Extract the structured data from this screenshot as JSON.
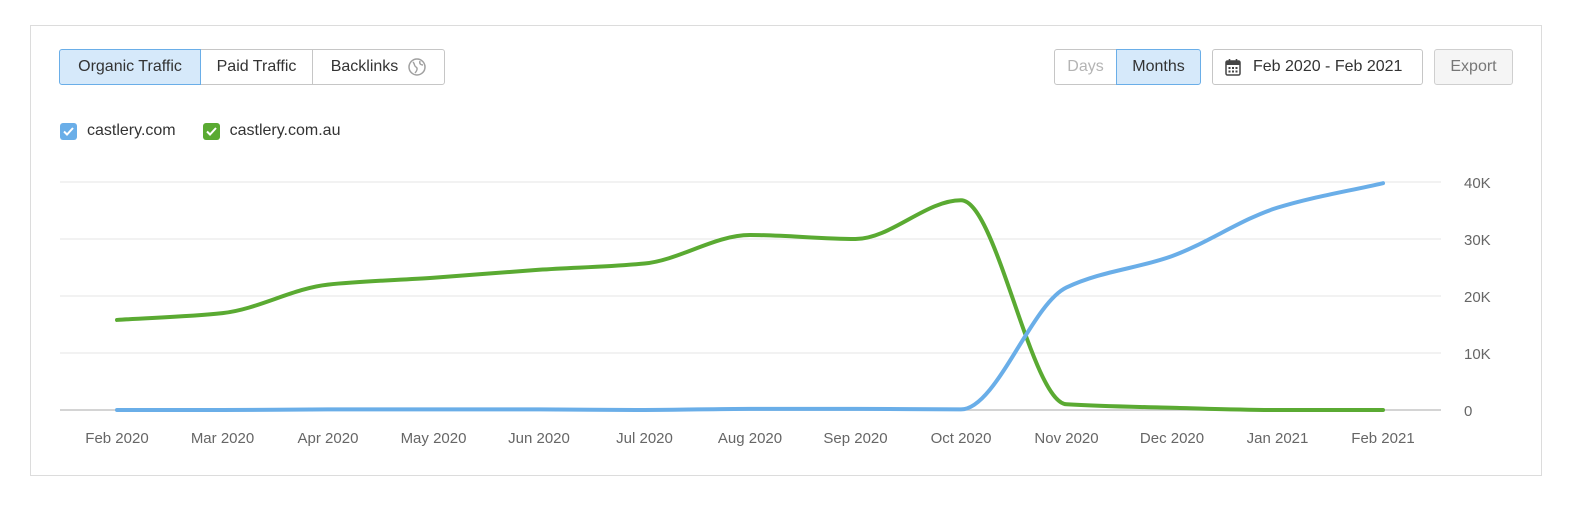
{
  "tabs": [
    {
      "label": "Organic Traffic",
      "active": true
    },
    {
      "label": "Paid Traffic",
      "active": false
    },
    {
      "label": "Backlinks",
      "active": false
    }
  ],
  "granularity": {
    "days_label": "Days",
    "months_label": "Months",
    "selected": "Months"
  },
  "date_range": {
    "label": "Feb 2020 - Feb 2021"
  },
  "export_label": "Export",
  "colors": {
    "blue": "#6aaee8",
    "green": "#5aaa32",
    "grid": "#e6e6e6",
    "axis": "#c6c6c6",
    "tick": "#666666"
  },
  "chart_data": {
    "type": "line",
    "x": [
      "Feb 2020",
      "Mar 2020",
      "Apr 2020",
      "May 2020",
      "Jun 2020",
      "Jul 2020",
      "Aug 2020",
      "Sep 2020",
      "Oct 2020",
      "Nov 2020",
      "Dec 2020",
      "Jan 2021",
      "Feb 2021"
    ],
    "yticks": [
      0,
      10000,
      20000,
      30000,
      40000
    ],
    "ytick_labels": [
      "0",
      "10K",
      "20K",
      "30K",
      "40K"
    ],
    "ylim": [
      0,
      40000
    ],
    "grid": true,
    "legend_position": "top-left",
    "series": [
      {
        "name": "castlery.com",
        "color": "#6aaee8",
        "values": [
          0,
          0,
          100,
          100,
          100,
          0,
          200,
          200,
          100,
          21500,
          27000,
          35500,
          39800
        ]
      },
      {
        "name": "castlery.com.au",
        "color": "#5aaa32",
        "values": [
          15800,
          17000,
          22000,
          23200,
          24600,
          25700,
          30700,
          30000,
          36800,
          1000,
          400,
          0,
          0
        ]
      }
    ]
  }
}
